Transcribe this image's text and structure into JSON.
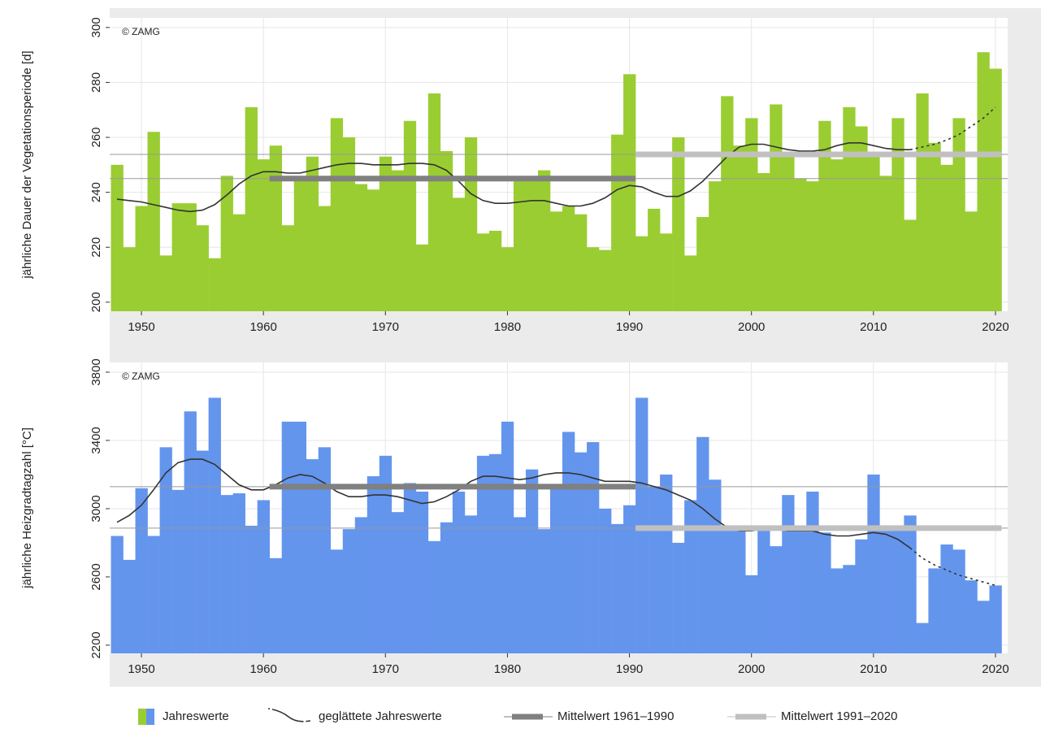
{
  "chart_data": [
    {
      "type": "bar",
      "ylabel": "jährliche Dauer der Vegetationsperiode [d]",
      "annotation": "© ZAMG",
      "color": "#9acd32",
      "x": [
        1948,
        1949,
        1950,
        1951,
        1952,
        1953,
        1954,
        1955,
        1956,
        1957,
        1958,
        1959,
        1960,
        1961,
        1962,
        1963,
        1964,
        1965,
        1966,
        1967,
        1968,
        1969,
        1970,
        1971,
        1972,
        1973,
        1974,
        1975,
        1976,
        1977,
        1978,
        1979,
        1980,
        1981,
        1982,
        1983,
        1984,
        1985,
        1986,
        1987,
        1988,
        1989,
        1990,
        1991,
        1992,
        1993,
        1994,
        1995,
        1996,
        1997,
        1998,
        1999,
        2000,
        2001,
        2002,
        2003,
        2004,
        2005,
        2006,
        2007,
        2008,
        2009,
        2010,
        2011,
        2012,
        2013,
        2014,
        2015,
        2016,
        2017,
        2018,
        2019,
        2020
      ],
      "values": [
        250,
        220,
        235,
        262,
        217,
        236,
        236,
        228,
        216,
        246,
        232,
        271,
        252,
        257,
        228,
        245,
        253,
        235,
        267,
        260,
        243,
        241,
        253,
        248,
        266,
        221,
        276,
        255,
        238,
        260,
        225,
        226,
        220,
        244,
        245,
        248,
        233,
        235,
        232,
        220,
        219,
        261,
        283,
        224,
        234,
        225,
        260,
        217,
        231,
        244,
        275,
        257,
        267,
        247,
        272,
        253,
        245,
        244,
        266,
        252,
        271,
        264,
        253,
        246,
        267,
        230,
        276,
        258,
        250,
        267,
        233,
        291,
        285
      ],
      "smooth": [
        237.5,
        237,
        236.5,
        235.5,
        234.5,
        233.5,
        233,
        233.5,
        235.5,
        239,
        243,
        246,
        247.5,
        247.5,
        247,
        247,
        248,
        249,
        250,
        250.5,
        250.5,
        250,
        250,
        250,
        250.5,
        250.5,
        250,
        248,
        244,
        239.5,
        237,
        236,
        236,
        236.5,
        237,
        237,
        236,
        235,
        235,
        236,
        238,
        241,
        242.5,
        242,
        240,
        238.5,
        238.5,
        240.5,
        244,
        248.5,
        253,
        256.5,
        257.5,
        257.5,
        256.5,
        255.5,
        255,
        255,
        255.5,
        257,
        258,
        258,
        257,
        256,
        255.5,
        255.5,
        256.5,
        257.5,
        259,
        261,
        264,
        267,
        271
      ],
      "smooth_dashed_from": 2013,
      "means": [
        {
          "value": 245,
          "years": [
            1961,
            1990
          ],
          "color": "#808080"
        },
        {
          "value": 253.8,
          "years": [
            1991,
            2020
          ],
          "color": "#c0c0c0"
        }
      ],
      "xlim": [
        1947.4,
        2021
      ],
      "xticks": [
        1950,
        1960,
        1970,
        1980,
        1990,
        2000,
        2010,
        2020
      ],
      "ylim": [
        196.7,
        303.5
      ],
      "yticks": [
        200,
        220,
        240,
        260,
        280,
        300
      ],
      "grid": true
    },
    {
      "type": "bar",
      "ylabel": "jährliche Heizgradtagzahl [°C]",
      "annotation": "© ZAMG",
      "color": "#6495ed",
      "x": [
        1948,
        1949,
        1950,
        1951,
        1952,
        1953,
        1954,
        1955,
        1956,
        1957,
        1958,
        1959,
        1960,
        1961,
        1962,
        1963,
        1964,
        1965,
        1966,
        1967,
        1968,
        1969,
        1970,
        1971,
        1972,
        1973,
        1974,
        1975,
        1976,
        1977,
        1978,
        1979,
        1980,
        1981,
        1982,
        1983,
        1984,
        1985,
        1986,
        1987,
        1988,
        1989,
        1990,
        1991,
        1992,
        1993,
        1994,
        1995,
        1996,
        1997,
        1998,
        1999,
        2000,
        2001,
        2002,
        2003,
        2004,
        2005,
        2006,
        2007,
        2008,
        2009,
        2010,
        2011,
        2012,
        2013,
        2014,
        2015,
        2016,
        2017,
        2018,
        2019,
        2020
      ],
      "values": [
        2840,
        2700,
        3120,
        2840,
        3360,
        3110,
        3570,
        3340,
        3650,
        3080,
        3090,
        2900,
        3050,
        2710,
        3510,
        3510,
        3290,
        3360,
        2760,
        2880,
        2950,
        3190,
        3310,
        2980,
        3150,
        3100,
        2810,
        2920,
        3100,
        2960,
        3310,
        3320,
        3510,
        2950,
        3230,
        2880,
        3130,
        3450,
        3330,
        3390,
        3000,
        2910,
        3020,
        3650,
        3130,
        3200,
        2800,
        3050,
        3420,
        3170,
        2900,
        2900,
        2610,
        2900,
        2780,
        3080,
        2890,
        3100,
        2860,
        2650,
        2670,
        2820,
        3200,
        2870,
        2880,
        2960,
        2330,
        2650,
        2790,
        2760,
        2580,
        2460,
        2550
      ],
      "smooth": [
        2920,
        2960,
        3020,
        3110,
        3210,
        3270,
        3290,
        3290,
        3260,
        3200,
        3140,
        3110,
        3110,
        3140,
        3180,
        3200,
        3190,
        3150,
        3100,
        3070,
        3070,
        3080,
        3080,
        3070,
        3050,
        3030,
        3040,
        3070,
        3110,
        3160,
        3190,
        3190,
        3180,
        3170,
        3180,
        3200,
        3210,
        3210,
        3200,
        3180,
        3160,
        3160,
        3160,
        3150,
        3130,
        3110,
        3080,
        3050,
        3000,
        2940,
        2890,
        2870,
        2870,
        2880,
        2880,
        2870,
        2870,
        2870,
        2850,
        2840,
        2840,
        2850,
        2860,
        2850,
        2820,
        2770,
        2710,
        2670,
        2640,
        2610,
        2590,
        2570,
        2550
      ],
      "smooth_dashed_from": 2013,
      "means": [
        {
          "value": 3129,
          "years": [
            1961,
            1990
          ],
          "color": "#808080"
        },
        {
          "value": 2886,
          "years": [
            1991,
            2020
          ],
          "color": "#c0c0c0"
        }
      ],
      "xlim": [
        1947.4,
        2021
      ],
      "xticks": [
        1950,
        1960,
        1970,
        1980,
        1990,
        2000,
        2010,
        2020
      ],
      "ylim": [
        2152,
        3857
      ],
      "yticks": [
        2200,
        2600,
        3000,
        3400,
        3800
      ],
      "grid": true
    }
  ],
  "legend": [
    "Jahreswerte",
    "geglättete Jahreswerte",
    "Mittelwert 1961–1990",
    "Mittelwert 1991–2020"
  ]
}
